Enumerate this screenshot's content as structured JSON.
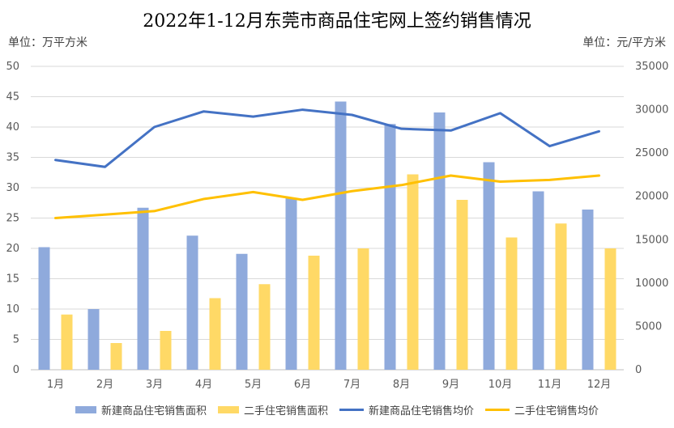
{
  "chart_data": {
    "type": "bar+line",
    "title": "2022年1-12月东莞市商品住宅网上签约销售情况",
    "y_left_label": "单位：万平方米",
    "y_right_label": "单位：元/平方米",
    "categories": [
      "1月",
      "2月",
      "3月",
      "4月",
      "5月",
      "6月",
      "7月",
      "8月",
      "9月",
      "10月",
      "11月",
      "12月"
    ],
    "y_left_ticks": [
      "0",
      "5",
      "10",
      "15",
      "20",
      "25",
      "30",
      "35",
      "40",
      "45",
      "50"
    ],
    "y_right_ticks": [
      "0",
      "5000",
      "10000",
      "15000",
      "20000",
      "25000",
      "30000",
      "35000"
    ],
    "ylim_left": [
      0,
      50
    ],
    "ylim_right": [
      0,
      35000
    ],
    "series": [
      {
        "name": "新建商品住宅销售面积",
        "type": "bar",
        "axis": "left",
        "color": "#8FAADC",
        "values": [
          20.2,
          10.0,
          26.7,
          22.1,
          19.1,
          28.3,
          44.2,
          40.5,
          42.4,
          34.2,
          29.4,
          26.4
        ]
      },
      {
        "name": "二手住宅销售面积",
        "type": "bar",
        "axis": "left",
        "color": "#FFD966",
        "values": [
          9.1,
          4.4,
          6.4,
          11.8,
          14.1,
          18.8,
          20.0,
          32.2,
          28.0,
          21.8,
          24.1,
          20.0
        ]
      },
      {
        "name": "新建商品住宅销售均价",
        "type": "line",
        "axis": "right",
        "color": "#4472C4",
        "values": [
          24200,
          23400,
          28000,
          29800,
          29200,
          30000,
          29400,
          27800,
          27600,
          29600,
          25800,
          27500
        ]
      },
      {
        "name": "二手住宅销售均价",
        "type": "line",
        "axis": "right",
        "color": "#FFC000",
        "values": [
          17500,
          17900,
          18300,
          19700,
          20500,
          19600,
          20600,
          21300,
          22400,
          21700,
          21900,
          22400
        ]
      }
    ]
  }
}
